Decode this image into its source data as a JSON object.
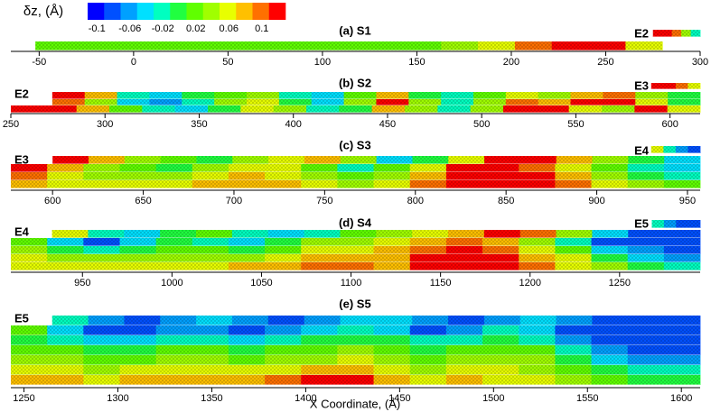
{
  "colorbar": {
    "label": "δz, (Å)",
    "clim": [
      -0.12,
      0.12
    ],
    "ticks": [
      -0.1,
      -0.06,
      -0.02,
      0.02,
      0.06,
      0.1
    ],
    "colors": [
      "#0000ff",
      "#0050ff",
      "#00a0ff",
      "#00e0ff",
      "#00ffc0",
      "#20ff40",
      "#60ff00",
      "#a0ff00",
      "#e8ff00",
      "#ffc000",
      "#ff7000",
      "#ff0000"
    ]
  },
  "chart_data": [
    {
      "type": "heatmap",
      "title": "(a) S1",
      "xlim": [
        -65,
        300
      ],
      "xticks": [
        -50,
        0,
        50,
        100,
        150,
        200,
        250,
        300
      ],
      "labels": {
        "right": "E2"
      },
      "rows": [
        {
          "start": 275,
          "end": 300,
          "values": [
            0.1,
            0.1,
            0.08,
            0.02,
            -0.04
          ]
        },
        {
          "start": -52,
          "end": 280,
          "values": [
            0,
            0,
            0.01,
            0,
            0,
            0.01,
            0,
            0,
            0,
            0,
            0.01,
            0.02,
            0.04,
            0.08,
            0.1,
            0.1,
            0.04
          ]
        }
      ]
    },
    {
      "type": "heatmap",
      "title": "(b) S2",
      "xlim": [
        250,
        616
      ],
      "xticks": [
        250,
        300,
        350,
        400,
        450,
        500,
        550,
        600
      ],
      "labels": {
        "left": "E2",
        "right": "E3"
      },
      "rows": [
        {
          "start": 590,
          "end": 616,
          "values": [
            0.1,
            0.1,
            0.08,
            0.04
          ]
        },
        {
          "start": 272,
          "end": 616,
          "values": [
            0.1,
            0.06,
            -0.04,
            -0.06,
            -0.02,
            0,
            0.02,
            -0.04,
            -0.06,
            0,
            0.06,
            -0.02,
            -0.04,
            0,
            0.04,
            0.02,
            0.06,
            0.08,
            0.02,
            -0.02
          ]
        },
        {
          "start": 272,
          "end": 616,
          "values": [
            0.08,
            0.02,
            -0.06,
            -0.08,
            -0.04,
            0.02,
            0.04,
            -0.02,
            -0.06,
            0.02,
            0.1,
            0.02,
            -0.04,
            0.02,
            0.08,
            0.06,
            0.1,
            0.1,
            0.04,
            -0.02
          ]
        },
        {
          "start": 250,
          "end": 616,
          "values": [
            0.1,
            0.1,
            0.06,
            0,
            -0.04,
            -0.06,
            -0.02,
            0.04,
            0.02,
            -0.04,
            -0.02,
            0.06,
            0.02,
            -0.04,
            0.02,
            0.1,
            0.1,
            0.04,
            0.02,
            0.1,
            0.04
          ]
        }
      ]
    },
    {
      "type": "heatmap",
      "title": "(c) S3",
      "xlim": [
        577,
        957
      ],
      "xticks": [
        600,
        650,
        700,
        750,
        800,
        850,
        900,
        950
      ],
      "labels": {
        "left": "E3",
        "right": "E4"
      },
      "rows": [
        {
          "start": 930,
          "end": 957,
          "values": [
            0.04,
            -0.04,
            -0.08,
            -0.1
          ]
        },
        {
          "start": 600,
          "end": 957,
          "values": [
            0.1,
            0.06,
            0.02,
            0,
            -0.02,
            0.02,
            0.04,
            0.06,
            0.02,
            -0.06,
            -0.02,
            0.04,
            0.1,
            0.1,
            0.06,
            0.02,
            -0.02,
            -0.06
          ]
        },
        {
          "start": 577,
          "end": 957,
          "values": [
            0.1,
            0.06,
            0.02,
            0,
            -0.02,
            0.02,
            0.04,
            0.04,
            0,
            -0.04,
            0,
            0.04,
            0.1,
            0.1,
            0.08,
            0.04,
            0,
            -0.04,
            -0.06
          ]
        },
        {
          "start": 577,
          "end": 957,
          "values": [
            0.08,
            0.04,
            0.02,
            0.02,
            0.02,
            0.04,
            0.06,
            0.04,
            0.02,
            0,
            0.02,
            0.06,
            0.1,
            0.1,
            0.1,
            0.06,
            0.02,
            -0.02,
            -0.04
          ]
        },
        {
          "start": 577,
          "end": 957,
          "values": [
            0.06,
            0.04,
            0.04,
            0.04,
            0.04,
            0.06,
            0.06,
            0.06,
            0.04,
            0.02,
            0.04,
            0.08,
            0.1,
            0.1,
            0.1,
            0.08,
            0.04,
            0.02,
            0
          ]
        }
      ]
    },
    {
      "type": "heatmap",
      "title": "(d) S4",
      "xlim": [
        910,
        1295
      ],
      "xticks": [
        950,
        1000,
        1050,
        1100,
        1150,
        1200,
        1250
      ],
      "labels": {
        "left": "E4",
        "right": "E5"
      },
      "rows": [
        {
          "start": 1268,
          "end": 1295,
          "values": [
            -0.04,
            -0.08,
            -0.1,
            -0.1
          ]
        },
        {
          "start": 933,
          "end": 1295,
          "values": [
            0.04,
            -0.04,
            -0.06,
            -0.02,
            0,
            -0.04,
            -0.06,
            -0.04,
            0,
            0.02,
            0.04,
            0.06,
            0.1,
            0.08,
            0.02,
            -0.06,
            -0.1,
            -0.1
          ]
        },
        {
          "start": 910,
          "end": 1295,
          "values": [
            0,
            -0.06,
            -0.1,
            -0.06,
            -0.02,
            -0.04,
            -0.06,
            -0.02,
            0.02,
            0.02,
            0.04,
            0.06,
            0.08,
            0.06,
            0.02,
            -0.04,
            -0.1,
            -0.1,
            -0.1
          ]
        },
        {
          "start": 910,
          "end": 1295,
          "values": [
            0.02,
            -0.02,
            -0.04,
            -0.02,
            0,
            0,
            -0.02,
            0,
            0.04,
            0.04,
            0.06,
            0.08,
            0.1,
            0.08,
            0.04,
            0,
            -0.06,
            -0.08,
            -0.1
          ]
        },
        {
          "start": 910,
          "end": 1295,
          "values": [
            0.04,
            0.02,
            0.02,
            0.02,
            0.02,
            0.02,
            0.02,
            0.04,
            0.06,
            0.06,
            0.06,
            0.1,
            0.1,
            0.1,
            0.06,
            0.04,
            -0.02,
            -0.06,
            -0.08
          ]
        },
        {
          "start": 910,
          "end": 1295,
          "values": [
            0.04,
            0.04,
            0.04,
            0.04,
            0.04,
            0.04,
            0.06,
            0.06,
            0.08,
            0.08,
            0.06,
            0.1,
            0.1,
            0.1,
            0.08,
            0.04,
            0.02,
            -0.02,
            -0.04
          ]
        }
      ]
    },
    {
      "type": "heatmap",
      "title": "(e) S5",
      "xlim": [
        1243,
        1610
      ],
      "xticks": [
        1250,
        1300,
        1350,
        1400,
        1450,
        1500,
        1550,
        1600
      ],
      "xlabel": "X Coordinate, (Å)",
      "labels": {
        "left": "E5"
      },
      "rows": [
        {
          "start": 1265,
          "end": 1610,
          "values": [
            -0.04,
            -0.08,
            -0.1,
            -0.08,
            -0.06,
            -0.08,
            -0.1,
            -0.08,
            -0.06,
            -0.06,
            -0.08,
            -0.1,
            -0.08,
            -0.06,
            -0.08,
            -0.1,
            -0.1,
            -0.1
          ]
        },
        {
          "start": 1243,
          "end": 1610,
          "values": [
            0,
            -0.06,
            -0.1,
            -0.1,
            -0.08,
            -0.08,
            -0.1,
            -0.08,
            -0.06,
            -0.04,
            -0.06,
            -0.1,
            -0.08,
            -0.04,
            -0.06,
            -0.1,
            -0.1,
            -0.1,
            -0.1
          ]
        },
        {
          "start": 1243,
          "end": 1610,
          "values": [
            -0.02,
            -0.04,
            -0.06,
            -0.06,
            -0.04,
            -0.04,
            -0.06,
            -0.04,
            -0.02,
            -0.02,
            -0.02,
            -0.04,
            -0.04,
            -0.02,
            -0.04,
            -0.08,
            -0.1,
            -0.1,
            -0.1
          ]
        },
        {
          "start": 1243,
          "end": 1610,
          "values": [
            0,
            0,
            -0.02,
            -0.02,
            0,
            0,
            -0.02,
            0,
            0,
            0.02,
            0,
            -0.02,
            0,
            0,
            0,
            -0.04,
            -0.08,
            -0.1,
            -0.1
          ]
        },
        {
          "start": 1243,
          "end": 1610,
          "values": [
            0.02,
            0.02,
            0,
            0,
            0.02,
            0.02,
            0,
            0.02,
            0.02,
            0.04,
            0.02,
            0,
            0.02,
            0.02,
            0.02,
            -0.02,
            -0.06,
            -0.08,
            -0.08
          ]
        },
        {
          "start": 1243,
          "end": 1610,
          "values": [
            0.04,
            0.04,
            0.02,
            0.04,
            0.04,
            0.04,
            0.04,
            0.04,
            0.06,
            0.06,
            0.04,
            0.02,
            0.04,
            0.04,
            0.02,
            0,
            -0.02,
            -0.04,
            -0.04
          ]
        },
        {
          "start": 1243,
          "end": 1610,
          "values": [
            0.06,
            0.06,
            0.04,
            0.06,
            0.06,
            0.06,
            0.06,
            0.08,
            0.1,
            0.1,
            0.06,
            0.04,
            0.06,
            0.04,
            0.04,
            0.02,
            0,
            -0.02,
            -0.02
          ]
        }
      ]
    }
  ]
}
